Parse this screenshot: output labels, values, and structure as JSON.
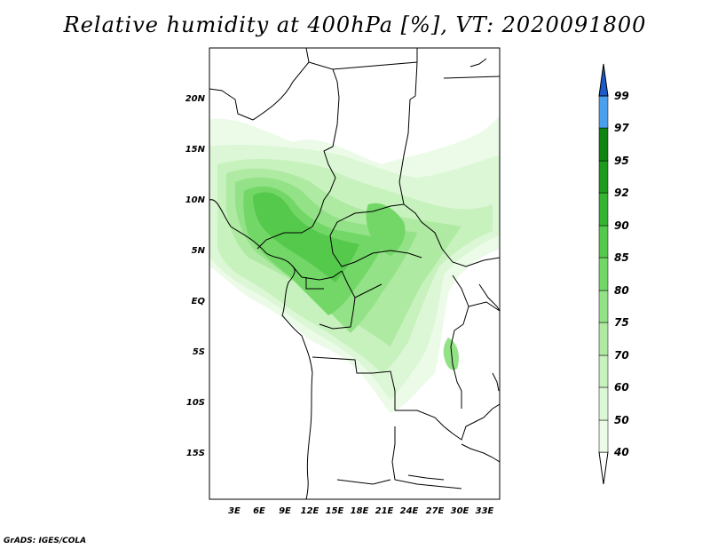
{
  "title": "Relative humidity at 400hPa [%], VT: 2020091800",
  "credit": "GrADS: IGES/COLA",
  "lat_labels": [
    "20N",
    "15N",
    "10N",
    "5N",
    "EQ",
    "5S",
    "10S",
    "15S"
  ],
  "lon_labels": [
    "3E",
    "6E",
    "9E",
    "12E",
    "15E",
    "18E",
    "21E",
    "24E",
    "27E",
    "30E",
    "33E"
  ],
  "colorbar": {
    "levels": [
      "40",
      "50",
      "60",
      "70",
      "75",
      "80",
      "85",
      "90",
      "92",
      "95",
      "97",
      "99"
    ],
    "colors": [
      "#ebfbe8",
      "#dcf7d5",
      "#c7f1bd",
      "#aeeaa1",
      "#93e287",
      "#73d768",
      "#55c94c",
      "#34b431",
      "#1e9a1c",
      "#0f8412",
      "#4aa0ec",
      "#2a78dc",
      "#1c5cc8"
    ]
  }
}
